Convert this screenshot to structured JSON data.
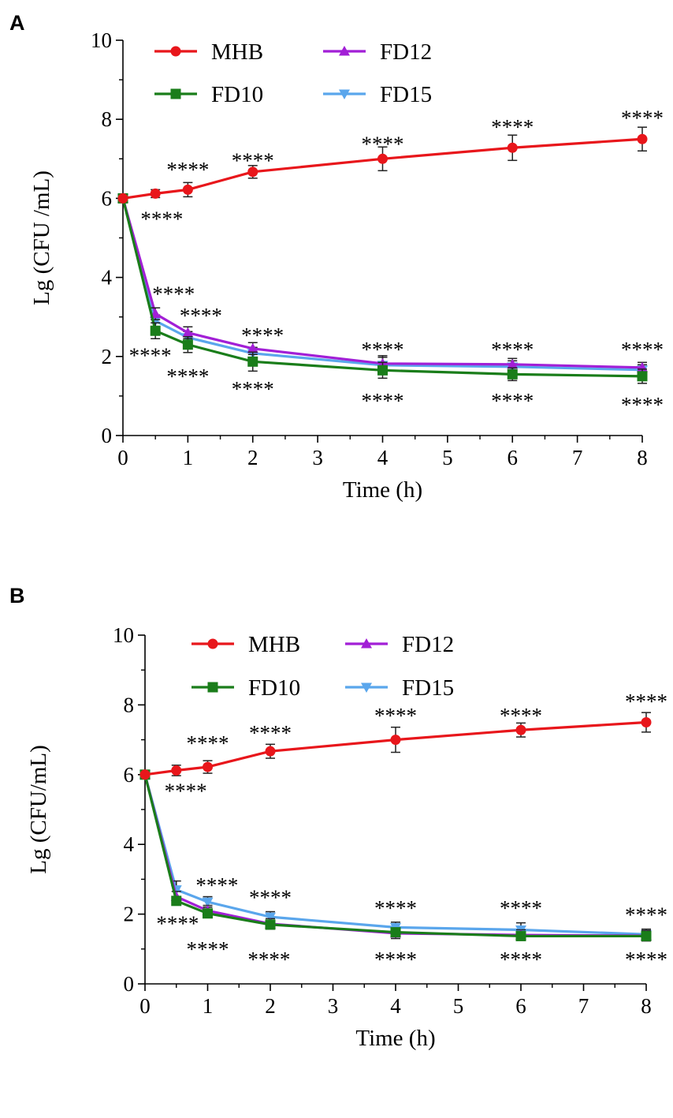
{
  "chart_data": [
    {
      "type": "line",
      "panel": "A",
      "xlabel": "Time (h)",
      "ylabel": "Lg (CFU /mL)",
      "xlim": [
        0,
        8
      ],
      "ylim": [
        0,
        10
      ],
      "xticks": [
        "0",
        "1",
        "2",
        "3",
        "4",
        "5",
        "6",
        "7",
        "8"
      ],
      "yticks": [
        "0",
        "2",
        "4",
        "6",
        "8",
        "10"
      ],
      "x": [
        0,
        0.5,
        1,
        2,
        4,
        6,
        8
      ],
      "series": [
        {
          "name": "MHB",
          "color": "#e8161b",
          "marker": "circle",
          "values": [
            6.0,
            6.12,
            6.22,
            6.67,
            7.0,
            7.28,
            7.5
          ],
          "errors": [
            0.06,
            0.1,
            0.18,
            0.16,
            0.3,
            0.32,
            0.3
          ]
        },
        {
          "name": "FD10",
          "color": "#1a7d1a",
          "marker": "square",
          "values": [
            6.0,
            2.65,
            2.3,
            1.87,
            1.65,
            1.55,
            1.5
          ],
          "errors": [
            0.06,
            0.2,
            0.2,
            0.24,
            0.2,
            0.16,
            0.18
          ]
        },
        {
          "name": "FD12",
          "color": "#a21fd6",
          "marker": "triangle-up",
          "values": [
            6.0,
            3.08,
            2.6,
            2.2,
            1.82,
            1.8,
            1.72
          ],
          "errors": [
            0.06,
            0.15,
            0.15,
            0.15,
            0.2,
            0.15,
            0.13
          ]
        },
        {
          "name": "FD15",
          "color": "#5aa6ec",
          "marker": "triangle-down",
          "values": [
            6.0,
            2.9,
            2.48,
            2.08,
            1.78,
            1.74,
            1.66
          ],
          "errors": [
            0.06,
            0.15,
            0.15,
            0.15,
            0.2,
            0.15,
            0.13
          ]
        }
      ],
      "legend_position": "top-left",
      "annotations": [
        {
          "text": "****",
          "x": 1.0,
          "y": 6.75
        },
        {
          "text": "****",
          "x": 0.6,
          "y": 5.5
        },
        {
          "text": "****",
          "x": 2.0,
          "y": 6.98
        },
        {
          "text": "****",
          "x": 4.0,
          "y": 7.4
        },
        {
          "text": "****",
          "x": 6.0,
          "y": 7.82
        },
        {
          "text": "****",
          "x": 8.0,
          "y": 8.05
        },
        {
          "text": "****",
          "x": 0.78,
          "y": 3.6
        },
        {
          "text": "****",
          "x": 1.2,
          "y": 3.05
        },
        {
          "text": "****",
          "x": 2.15,
          "y": 2.55
        },
        {
          "text": "****",
          "x": 4.0,
          "y": 2.2
        },
        {
          "text": "****",
          "x": 6.0,
          "y": 2.2
        },
        {
          "text": "****",
          "x": 8.0,
          "y": 2.2
        },
        {
          "text": "****",
          "x": 0.42,
          "y": 2.05
        },
        {
          "text": "****",
          "x": 1.0,
          "y": 1.52
        },
        {
          "text": "****",
          "x": 2.0,
          "y": 1.2
        },
        {
          "text": "****",
          "x": 4.0,
          "y": 0.9
        },
        {
          "text": "****",
          "x": 6.0,
          "y": 0.9
        },
        {
          "text": "****",
          "x": 8.0,
          "y": 0.8
        }
      ]
    },
    {
      "type": "line",
      "panel": "B",
      "xlabel": "Time (h)",
      "ylabel": "Lg (CFU/mL)",
      "xlim": [
        0,
        8
      ],
      "ylim": [
        0,
        10
      ],
      "xticks": [
        "0",
        "1",
        "2",
        "3",
        "4",
        "5",
        "6",
        "7",
        "8"
      ],
      "yticks": [
        "0",
        "2",
        "4",
        "6",
        "8",
        "10"
      ],
      "x": [
        0,
        0.5,
        1,
        2,
        4,
        6,
        8
      ],
      "series": [
        {
          "name": "MHB",
          "color": "#e8161b",
          "marker": "circle",
          "values": [
            6.0,
            6.12,
            6.22,
            6.67,
            7.0,
            7.28,
            7.5
          ],
          "errors": [
            0.06,
            0.15,
            0.18,
            0.2,
            0.36,
            0.2,
            0.28
          ]
        },
        {
          "name": "FD10",
          "color": "#1a7d1a",
          "marker": "square",
          "values": [
            6.0,
            2.38,
            2.02,
            1.7,
            1.48,
            1.37,
            1.37
          ],
          "errors": [
            0.06,
            0.12,
            0.1,
            0.12,
            0.12,
            0.12,
            0.12
          ]
        },
        {
          "name": "FD12",
          "color": "#a21fd6",
          "marker": "triangle-up",
          "values": [
            6.0,
            2.5,
            2.1,
            1.72,
            1.45,
            1.4,
            1.38
          ],
          "errors": [
            0.06,
            0.15,
            0.15,
            0.15,
            0.15,
            0.15,
            0.15
          ]
        },
        {
          "name": "FD15",
          "color": "#5aa6ec",
          "marker": "triangle-down",
          "values": [
            6.0,
            2.7,
            2.35,
            1.92,
            1.62,
            1.55,
            1.42
          ],
          "errors": [
            0.06,
            0.25,
            0.15,
            0.15,
            0.15,
            0.2,
            0.15
          ]
        }
      ],
      "legend_position": "top-left",
      "annotations": [
        {
          "text": "****",
          "x": 1.0,
          "y": 6.92
        },
        {
          "text": "****",
          "x": 0.65,
          "y": 5.55
        },
        {
          "text": "****",
          "x": 2.0,
          "y": 7.22
        },
        {
          "text": "****",
          "x": 4.0,
          "y": 7.72
        },
        {
          "text": "****",
          "x": 6.0,
          "y": 7.72
        },
        {
          "text": "****",
          "x": 8.0,
          "y": 8.12
        },
        {
          "text": "****",
          "x": 1.15,
          "y": 2.85
        },
        {
          "text": "****",
          "x": 2.0,
          "y": 2.5
        },
        {
          "text": "****",
          "x": 4.0,
          "y": 2.2
        },
        {
          "text": "****",
          "x": 6.0,
          "y": 2.2
        },
        {
          "text": "****",
          "x": 8.0,
          "y": 2.0
        },
        {
          "text": "****",
          "x": 0.52,
          "y": 1.75
        },
        {
          "text": "****",
          "x": 1.0,
          "y": 1.02
        },
        {
          "text": "****",
          "x": 1.98,
          "y": 0.72
        },
        {
          "text": "****",
          "x": 4.0,
          "y": 0.72
        },
        {
          "text": "****",
          "x": 6.0,
          "y": 0.72
        },
        {
          "text": "****",
          "x": 8.0,
          "y": 0.72
        }
      ]
    }
  ]
}
